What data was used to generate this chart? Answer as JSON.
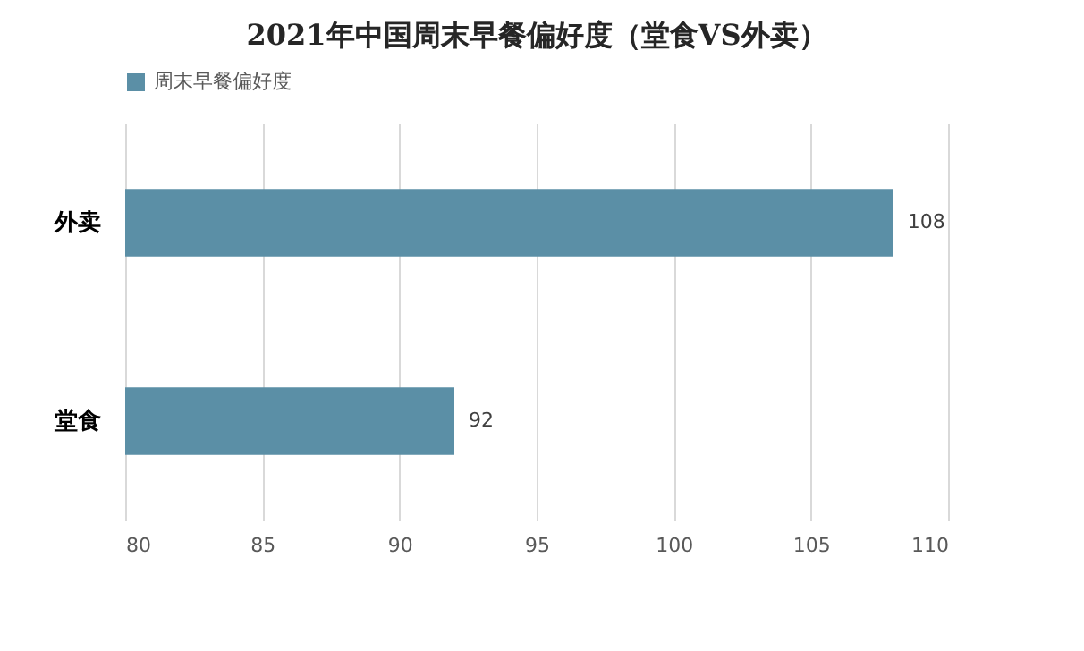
{
  "chart_data": {
    "type": "bar",
    "title": "2021年中国周末早餐偏好度（堂食VS外卖）",
    "orientation": "horizontal",
    "categories": [
      "外卖",
      "堂食"
    ],
    "series": [
      {
        "name": "周末早餐偏好度",
        "color": "#5b8fa6",
        "values": [
          108,
          92
        ]
      }
    ],
    "xlim": [
      80,
      110
    ],
    "xticks": [
      80,
      85,
      90,
      95,
      100,
      105,
      110
    ],
    "grid": "x",
    "legend": "top",
    "data_labels": true
  }
}
